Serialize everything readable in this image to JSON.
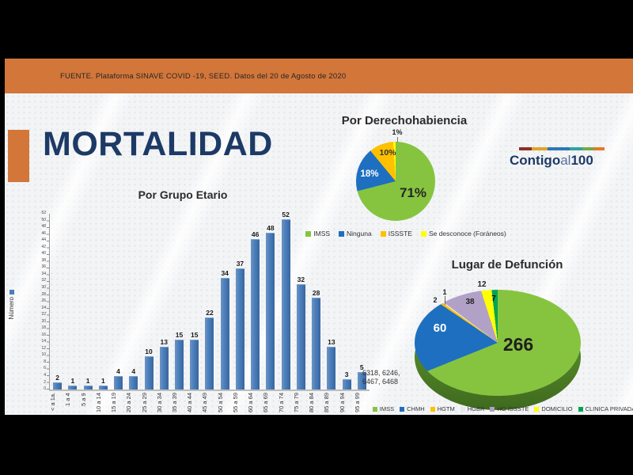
{
  "banner": {
    "source_text": "FUENTE. Plataforma SINAVE COVID -19, SEED. Datos del 20 de Agosto de 2020",
    "color": "#d2763a"
  },
  "page_title": "MORTALIDAD",
  "theme": {
    "navy": "#1d3a66",
    "accent_orange": "#d2763a",
    "bar_blue": "#4a7ebb"
  },
  "logo": {
    "part1": "Contigo",
    "part2": "al",
    "part3": "100",
    "stripe_colors": [
      "#8c2f28",
      "#e0a526",
      "#2e75b6",
      "#2fa3a0",
      "#6fac46",
      "#e07b28"
    ]
  },
  "chart_data": [
    {
      "type": "bar",
      "title": "Por Grupo Etario",
      "series_name": "Número",
      "categories": [
        "< a 1a.",
        "1 a 4",
        "5 a 9",
        "10 a 14",
        "15 a 19",
        "20 a 24",
        "25 a 29",
        "30 a 34",
        "35 a 39",
        "40 a 44",
        "45 a 49",
        "50 a 54",
        "55 a 59",
        "60 a 64",
        "65 a 69",
        "70 a 74",
        "75 a 79",
        "80 a 84",
        "85 a 89",
        "90 a 94",
        "95 a 99"
      ],
      "values": [
        2,
        1,
        1,
        1,
        4,
        4,
        10,
        13,
        15,
        15,
        22,
        34,
        37,
        46,
        48,
        52,
        32,
        28,
        13,
        3,
        5
      ],
      "ylabel": "Número",
      "ylim": [
        0,
        52
      ],
      "ytick_step": 2,
      "bar_color": "#4a7ebb",
      "annotation": "6318, 6246, 6467, 6468",
      "legend_position": "left",
      "grid": false
    },
    {
      "type": "pie",
      "title": "Por Derechohabiencia",
      "labels": [
        "IMSS",
        "Ninguna",
        "ISSSTE",
        "Se desconoce (Foráneos)"
      ],
      "values": [
        71,
        18,
        10,
        1
      ],
      "display_labels": [
        "71%",
        "18%",
        "10%",
        "1%"
      ],
      "colors": [
        "#86c440",
        "#1e6fc0",
        "#ffc000",
        "#ffff00"
      ],
      "legend_position": "bottom"
    },
    {
      "type": "pie",
      "style": "3d",
      "title": "Lugar de Defunción",
      "labels": [
        "IMSS",
        "CHMH",
        "HGTM",
        "HGBR",
        "HG ISSSTE",
        "DOMICILIO",
        "CLINICA PRIVADA"
      ],
      "values": [
        266,
        60,
        2,
        1,
        38,
        12,
        7
      ],
      "colors": [
        "#86c440",
        "#1e6fc0",
        "#ffc000",
        "#e9e9e9",
        "#b2a1c7",
        "#ffff00",
        "#00a550"
      ],
      "legend_position": "bottom"
    }
  ]
}
